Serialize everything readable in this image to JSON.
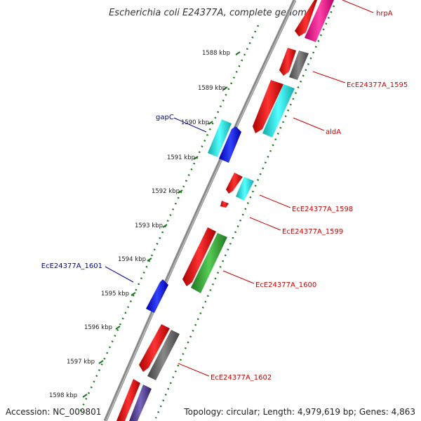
{
  "title": "Escherichia coli E24377A, complete genome",
  "footer": {
    "accession": "Accession: NC_009801",
    "topology": "Topology: circular; Length: 4,979,619 bp; Genes: 4,863"
  },
  "ticks": [
    "1588 kbp",
    "1589 kbp",
    "1590 kbp",
    "1591 kbp",
    "1592 kbp",
    "1593 kbp",
    "1594 kbp",
    "1595 kbp",
    "1596 kbp",
    "1597 kbp",
    "1598 kbp"
  ],
  "labels": {
    "hrpA": "hrpA",
    "g1595": "EcE24377A_1595",
    "aldA": "aldA",
    "gapC": "gapC",
    "g1598": "EcE24377A_1598",
    "g1599": "EcE24377A_1599",
    "g1600": "EcE24377A_1600",
    "g1601": "EcE24377A_1601",
    "g1602": "EcE24377A_1602"
  },
  "colors": {
    "forward_label": "#cc0000",
    "reverse_label": "#000099",
    "backbone": "#888888",
    "tick_ring": "#1a7a1a",
    "red": "#ee1111",
    "cyan": "#22dddd",
    "blue": "#1111ee",
    "gray": "#666666",
    "green": "#33aa33",
    "magenta": "#ee1199",
    "purple": "#554499"
  }
}
